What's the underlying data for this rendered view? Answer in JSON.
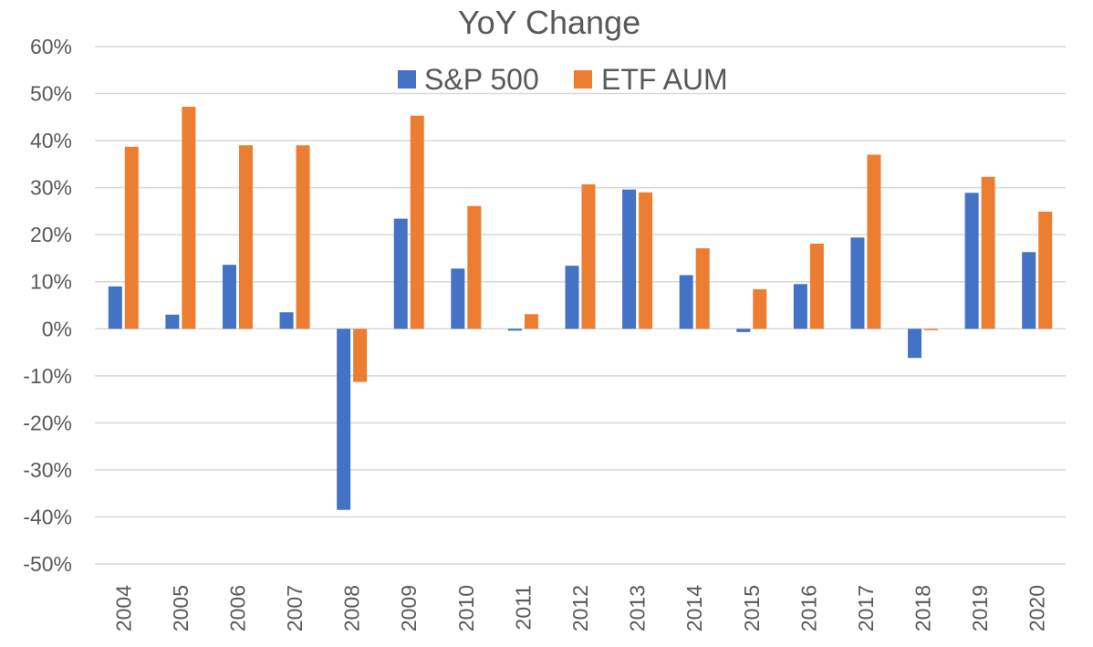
{
  "chart_data": {
    "type": "bar",
    "title": "YoY Change",
    "xlabel": "",
    "ylabel": "",
    "ylim": [
      -50,
      60
    ],
    "y_ticks": [
      "60%",
      "50%",
      "40%",
      "30%",
      "20%",
      "10%",
      "0%",
      "-10%",
      "-20%",
      "-30%",
      "-40%",
      "-50%"
    ],
    "y_tick_values": [
      60,
      50,
      40,
      30,
      20,
      10,
      0,
      -10,
      -20,
      -30,
      -40,
      -50
    ],
    "grid": true,
    "legend_position": "top-center",
    "categories": [
      "2004",
      "2005",
      "2006",
      "2007",
      "2008",
      "2009",
      "2010",
      "2011",
      "2012",
      "2013",
      "2014",
      "2015",
      "2016",
      "2017",
      "2018",
      "2019",
      "2020"
    ],
    "series": [
      {
        "name": "S&P 500",
        "color": "#4472c4",
        "values": [
          9.0,
          3.0,
          13.6,
          3.5,
          -38.5,
          23.4,
          12.8,
          -0.4,
          13.4,
          29.6,
          11.4,
          -0.7,
          9.5,
          19.4,
          -6.2,
          28.9,
          16.3
        ]
      },
      {
        "name": "ETF AUM",
        "color": "#ed7d31",
        "values": [
          38.7,
          47.2,
          39.0,
          39.0,
          -11.3,
          45.3,
          26.1,
          3.1,
          30.7,
          29.0,
          17.1,
          8.4,
          18.1,
          37.0,
          -0.3,
          32.3,
          24.9
        ]
      }
    ]
  }
}
